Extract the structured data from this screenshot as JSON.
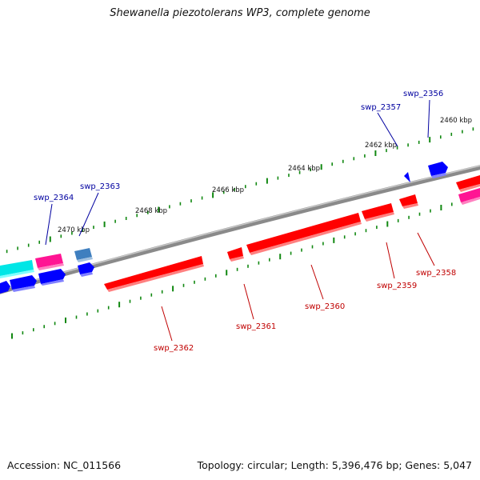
{
  "title": "Shewanella piezotolerans WP3, complete genome",
  "footer": {
    "accession": "Accession: NC_011566",
    "summary": "Topology: circular; Length: 5,396,476 bp; Genes: 5,047"
  },
  "ruler_labels": [
    "2460 kbp",
    "2462 kbp",
    "2464 kbp",
    "2466 kbp",
    "2468 kbp",
    "2470 kbp"
  ],
  "gene_labels_top": [
    "swp_2356",
    "swp_2357",
    "swp_2363",
    "swp_2364"
  ],
  "gene_labels_bottom": [
    "swp_2358",
    "swp_2359",
    "swp_2360",
    "swp_2361",
    "swp_2362"
  ],
  "colors": {
    "forward_gene": "#0000ff",
    "reverse_gene": "#ff0000",
    "forward_label": "#0000a0",
    "reverse_label": "#c00000",
    "tick": "#118811",
    "backbone": "#888888",
    "cyan_gene": "#00e6e6",
    "magenta_gene": "#ff1493",
    "steel_gene": "#3f7fbf"
  }
}
